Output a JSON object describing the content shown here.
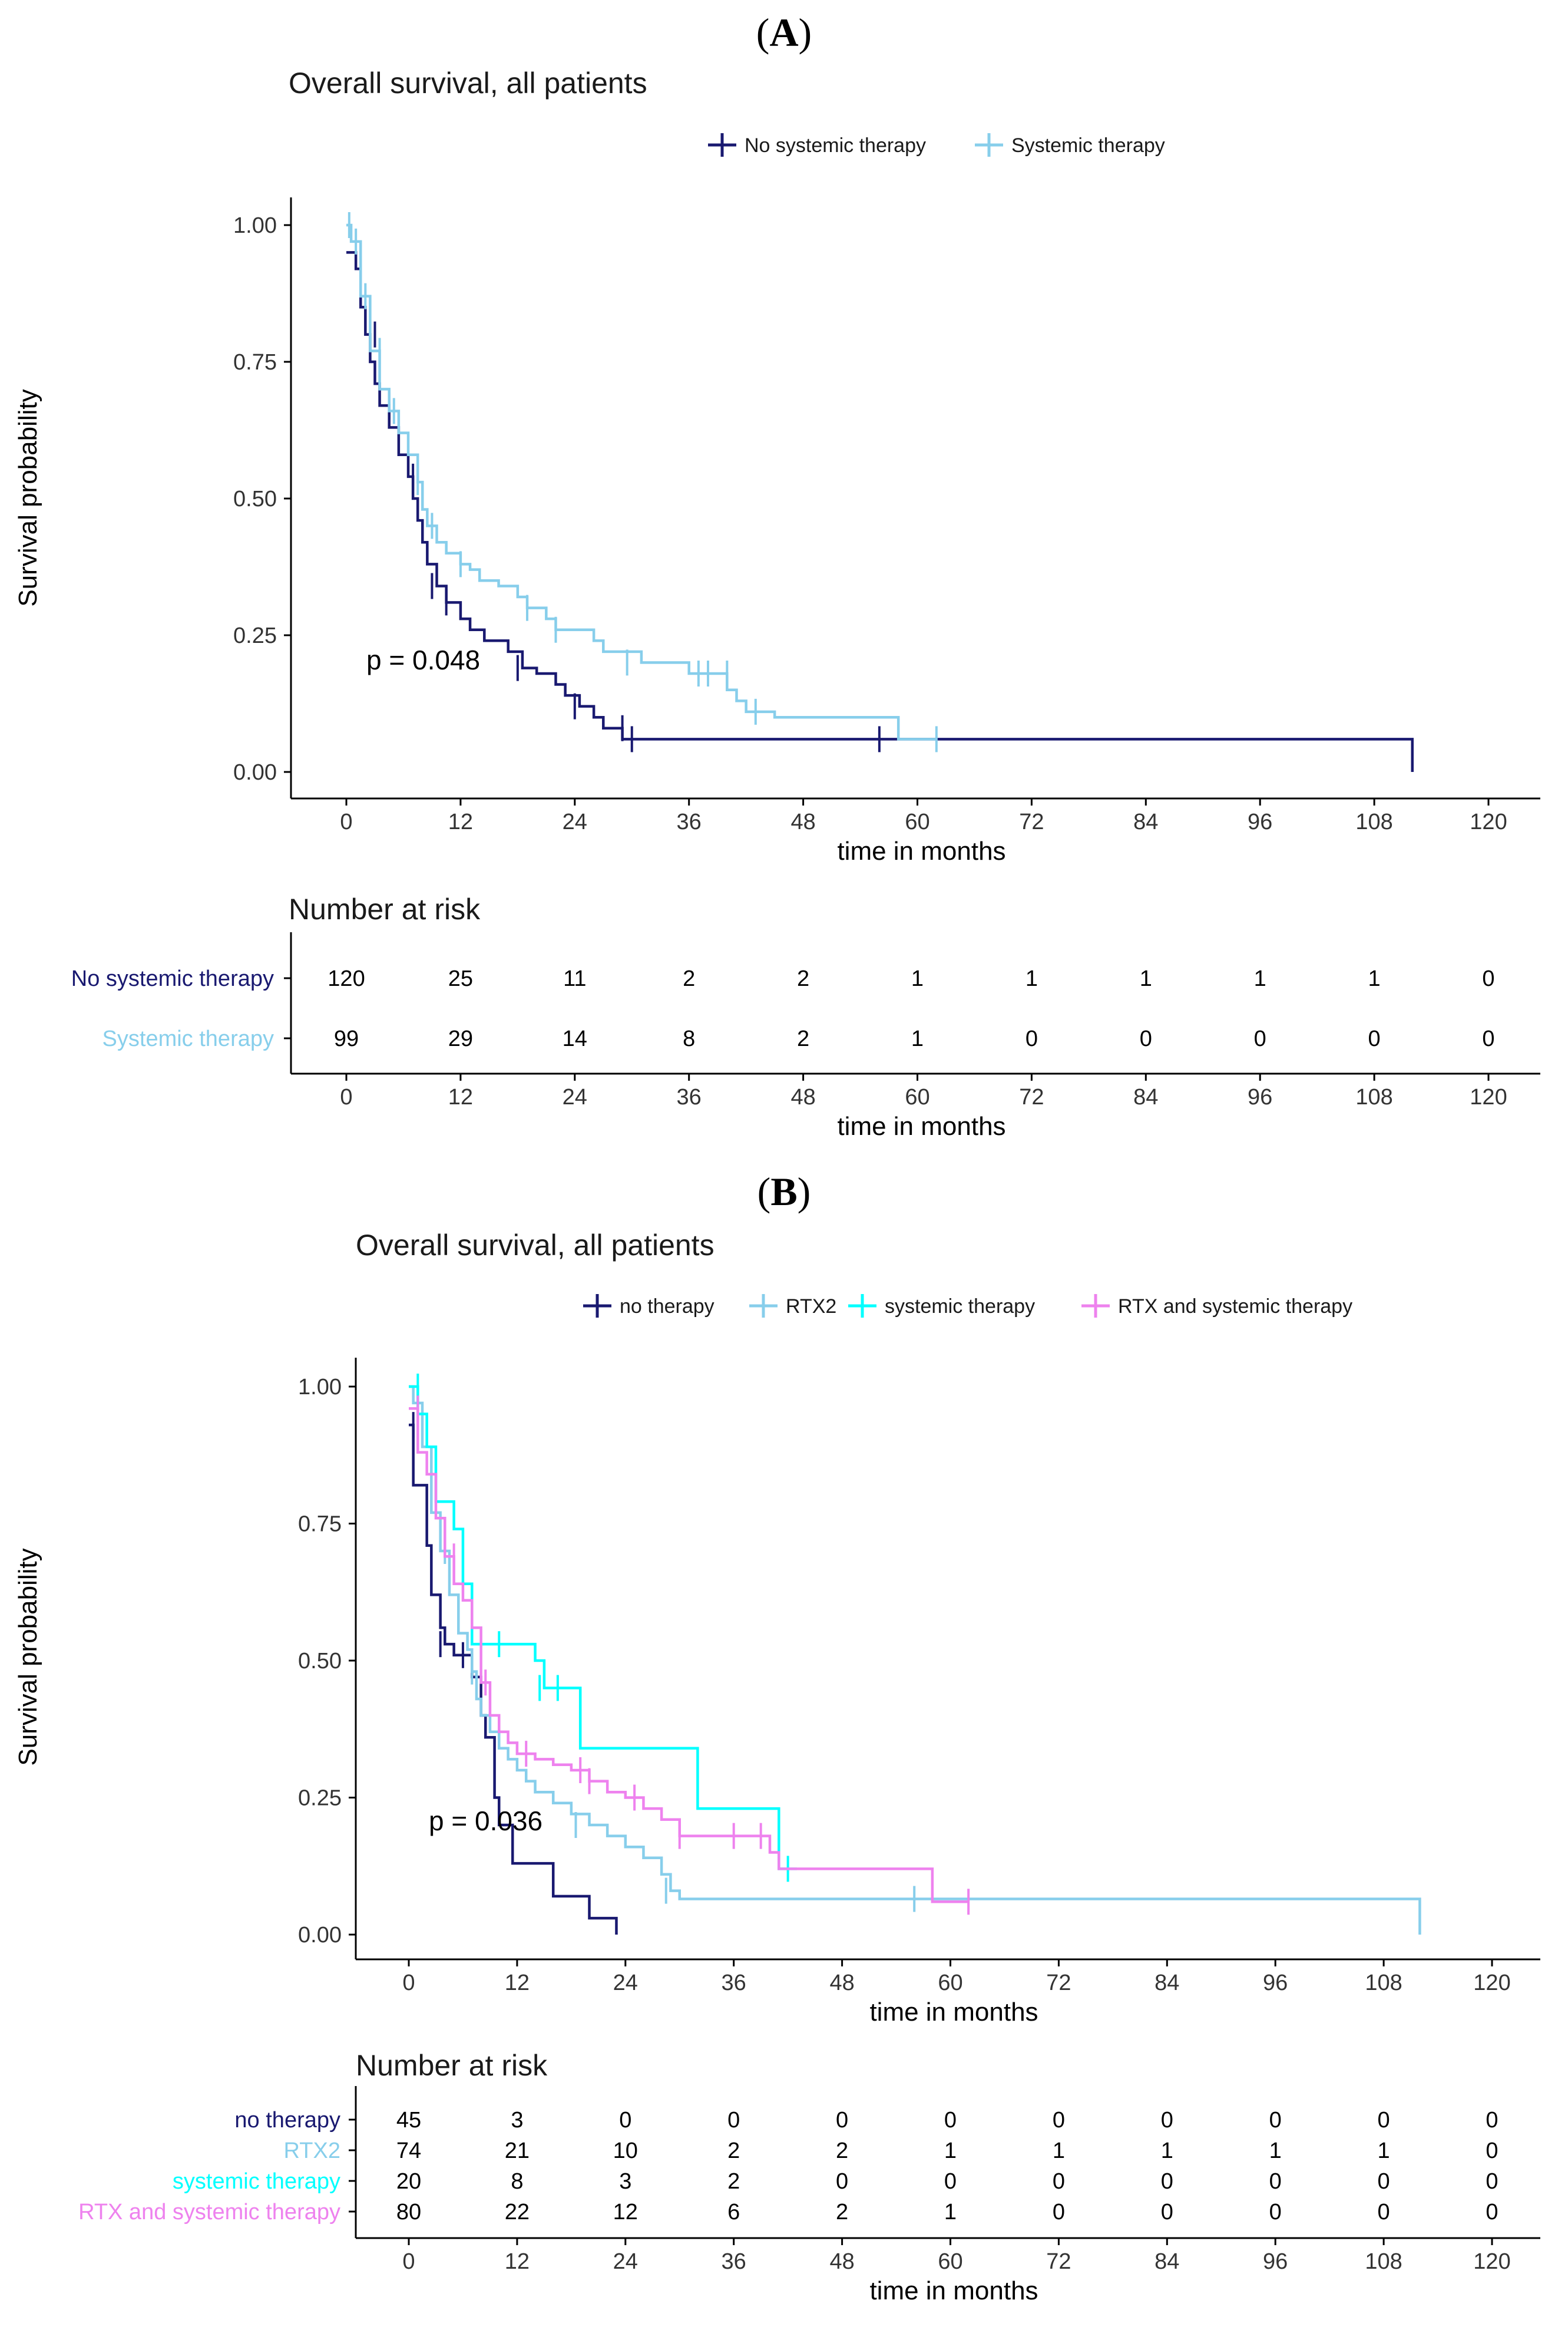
{
  "panels": {
    "A": {
      "label": "A",
      "title": "Overall survival, all patients",
      "p_value": "p = 0.048",
      "risk_title": "Number at risk",
      "risk_groups": [
        "No systemic therapy",
        "Systemic therapy"
      ]
    },
    "B": {
      "label": "B",
      "title": "Overall survival, all patients",
      "p_value": "p = 0.036",
      "risk_title": "Number at risk",
      "risk_groups": [
        "no therapy",
        "RTX2",
        "systemic therapy",
        "RTX and systemic therapy"
      ]
    }
  },
  "chart_data": [
    {
      "type": "line",
      "subtype": "kaplan-meier",
      "panel": "A",
      "title": "Overall survival, all patients",
      "xlabel": "time in months",
      "ylabel": "Survival probability",
      "xlim": [
        0,
        120
      ],
      "ylim": [
        0,
        1
      ],
      "xticks": [
        0,
        12,
        24,
        36,
        48,
        60,
        72,
        84,
        96,
        108,
        120
      ],
      "yticks": [
        "0.00",
        "0.25",
        "0.50",
        "0.75",
        "1.00"
      ],
      "legend_position": "top",
      "p_value": "p = 0.048",
      "series": [
        {
          "name": "No systemic therapy",
          "color": "#191970",
          "steps": [
            [
              0,
              0.95
            ],
            [
              1,
              0.92
            ],
            [
              1.5,
              0.85
            ],
            [
              2,
              0.8
            ],
            [
              2.5,
              0.75
            ],
            [
              3,
              0.71
            ],
            [
              3.5,
              0.67
            ],
            [
              4.5,
              0.63
            ],
            [
              5.5,
              0.58
            ],
            [
              6.5,
              0.54
            ],
            [
              7,
              0.5
            ],
            [
              7.5,
              0.46
            ],
            [
              8,
              0.42
            ],
            [
              8.5,
              0.38
            ],
            [
              9.5,
              0.34
            ],
            [
              10.5,
              0.31
            ],
            [
              12,
              0.28
            ],
            [
              13,
              0.26
            ],
            [
              14.5,
              0.24
            ],
            [
              17,
              0.22
            ],
            [
              18.5,
              0.19
            ],
            [
              20,
              0.18
            ],
            [
              22,
              0.16
            ],
            [
              23,
              0.14
            ],
            [
              24.5,
              0.12
            ],
            [
              26,
              0.1
            ],
            [
              27,
              0.08
            ],
            [
              29,
              0.06
            ],
            [
              112,
              0.06
            ],
            [
              112,
              0.0
            ]
          ],
          "censor": [
            [
              1.5,
              0.92
            ],
            [
              3,
              0.8
            ],
            [
              4.5,
              0.67
            ],
            [
              7,
              0.54
            ],
            [
              9,
              0.34
            ],
            [
              10.5,
              0.31
            ],
            [
              18,
              0.19
            ],
            [
              24,
              0.12
            ],
            [
              29,
              0.08
            ],
            [
              30,
              0.06
            ],
            [
              56,
              0.06
            ]
          ]
        },
        {
          "name": "Systemic therapy",
          "color": "#87CEEB",
          "steps": [
            [
              0,
              1.0
            ],
            [
              0.5,
              0.97
            ],
            [
              1.5,
              0.87
            ],
            [
              2.5,
              0.77
            ],
            [
              3.5,
              0.7
            ],
            [
              4.5,
              0.66
            ],
            [
              5.5,
              0.62
            ],
            [
              6.5,
              0.58
            ],
            [
              7.5,
              0.53
            ],
            [
              8,
              0.48
            ],
            [
              8.5,
              0.45
            ],
            [
              9.5,
              0.42
            ],
            [
              10.5,
              0.4
            ],
            [
              12,
              0.38
            ],
            [
              13,
              0.37
            ],
            [
              14,
              0.35
            ],
            [
              16,
              0.34
            ],
            [
              18,
              0.32
            ],
            [
              19,
              0.3
            ],
            [
              21,
              0.28
            ],
            [
              22,
              0.26
            ],
            [
              26,
              0.24
            ],
            [
              27,
              0.22
            ],
            [
              31,
              0.2
            ],
            [
              36,
              0.18
            ],
            [
              40,
              0.15
            ],
            [
              41,
              0.13
            ],
            [
              42,
              0.11
            ],
            [
              45,
              0.1
            ],
            [
              58,
              0.1
            ],
            [
              58,
              0.06
            ],
            [
              62,
              0.06
            ]
          ],
          "censor": [
            [
              0.3,
              1.0
            ],
            [
              1,
              0.97
            ],
            [
              2,
              0.87
            ],
            [
              3.5,
              0.77
            ],
            [
              5,
              0.66
            ],
            [
              7.5,
              0.53
            ],
            [
              9,
              0.45
            ],
            [
              12,
              0.38
            ],
            [
              19,
              0.3
            ],
            [
              22,
              0.26
            ],
            [
              29.5,
              0.2
            ],
            [
              37,
              0.18
            ],
            [
              38,
              0.18
            ],
            [
              40,
              0.18
            ],
            [
              43,
              0.11
            ],
            [
              62,
              0.06
            ]
          ]
        }
      ],
      "risk_table": {
        "title": "Number at risk",
        "times": [
          0,
          12,
          24,
          36,
          48,
          60,
          72,
          84,
          96,
          108,
          120
        ],
        "xlabel": "time in months",
        "rows": [
          {
            "name": "No systemic therapy",
            "color": "#191970",
            "values": [
              120,
              25,
              11,
              2,
              2,
              1,
              1,
              1,
              1,
              1,
              0
            ]
          },
          {
            "name": "Systemic therapy",
            "color": "#87CEEB",
            "values": [
              99,
              29,
              14,
              8,
              2,
              1,
              0,
              0,
              0,
              0,
              0
            ]
          }
        ]
      }
    },
    {
      "type": "line",
      "subtype": "kaplan-meier",
      "panel": "B",
      "title": "Overall survival, all patients",
      "xlabel": "time in months",
      "ylabel": "Survival probability",
      "xlim": [
        0,
        120
      ],
      "ylim": [
        0,
        1
      ],
      "xticks": [
        0,
        12,
        24,
        36,
        48,
        60,
        72,
        84,
        96,
        108,
        120
      ],
      "yticks": [
        "0.00",
        "0.25",
        "0.50",
        "0.75",
        "1.00"
      ],
      "legend_position": "top",
      "p_value": "p = 0.036",
      "series": [
        {
          "name": "no therapy",
          "color": "#191970",
          "steps": [
            [
              0,
              0.93
            ],
            [
              0.5,
              0.82
            ],
            [
              2,
              0.71
            ],
            [
              2.5,
              0.62
            ],
            [
              3.5,
              0.56
            ],
            [
              4,
              0.53
            ],
            [
              5,
              0.51
            ],
            [
              7,
              0.47
            ],
            [
              8,
              0.4
            ],
            [
              8.5,
              0.36
            ],
            [
              9.5,
              0.25
            ],
            [
              10,
              0.2
            ],
            [
              11.5,
              0.13
            ],
            [
              16,
              0.07
            ],
            [
              20,
              0.03
            ],
            [
              23,
              0.0
            ]
          ],
          "censor": [
            [
              0.5,
              0.93
            ],
            [
              3.5,
              0.53
            ],
            [
              6,
              0.51
            ]
          ]
        },
        {
          "name": "RTX2",
          "color": "#87CEEB",
          "steps": [
            [
              0,
              1.0
            ],
            [
              0.5,
              0.97
            ],
            [
              1.5,
              0.89
            ],
            [
              2.5,
              0.77
            ],
            [
              3.5,
              0.7
            ],
            [
              4.5,
              0.62
            ],
            [
              5.5,
              0.55
            ],
            [
              6.5,
              0.52
            ],
            [
              7,
              0.48
            ],
            [
              7.5,
              0.43
            ],
            [
              8,
              0.4
            ],
            [
              9,
              0.37
            ],
            [
              10,
              0.34
            ],
            [
              11,
              0.32
            ],
            [
              12,
              0.3
            ],
            [
              13,
              0.28
            ],
            [
              14,
              0.26
            ],
            [
              16,
              0.24
            ],
            [
              18,
              0.22
            ],
            [
              20,
              0.2
            ],
            [
              22,
              0.18
            ],
            [
              24,
              0.16
            ],
            [
              26,
              0.14
            ],
            [
              28,
              0.11
            ],
            [
              29,
              0.08
            ],
            [
              30,
              0.065
            ],
            [
              112,
              0.065
            ],
            [
              112,
              0.0
            ]
          ],
          "censor": [
            [
              1,
              0.97
            ],
            [
              4,
              0.7
            ],
            [
              7,
              0.48
            ],
            [
              18.5,
              0.2
            ],
            [
              28.5,
              0.08
            ],
            [
              56,
              0.065
            ]
          ]
        },
        {
          "name": "systemic therapy",
          "color": "#00FFFF",
          "steps": [
            [
              0,
              1.0
            ],
            [
              1,
              0.95
            ],
            [
              2,
              0.89
            ],
            [
              3,
              0.79
            ],
            [
              5,
              0.74
            ],
            [
              6,
              0.64
            ],
            [
              7,
              0.53
            ],
            [
              14,
              0.5
            ],
            [
              15,
              0.45
            ],
            [
              19,
              0.34
            ],
            [
              32,
              0.23
            ],
            [
              41,
              0.12
            ],
            [
              43,
              0.12
            ]
          ],
          "censor": [
            [
              1,
              1.0
            ],
            [
              10,
              0.53
            ],
            [
              14.5,
              0.45
            ],
            [
              16.5,
              0.45
            ],
            [
              42,
              0.12
            ]
          ]
        },
        {
          "name": "RTX and systemic therapy",
          "color": "#EE82EE",
          "steps": [
            [
              0,
              0.96
            ],
            [
              1,
              0.88
            ],
            [
              2,
              0.84
            ],
            [
              3,
              0.76
            ],
            [
              4,
              0.69
            ],
            [
              5,
              0.64
            ],
            [
              6,
              0.61
            ],
            [
              7,
              0.56
            ],
            [
              8,
              0.46
            ],
            [
              9,
              0.4
            ],
            [
              10,
              0.37
            ],
            [
              11,
              0.35
            ],
            [
              12,
              0.33
            ],
            [
              14,
              0.32
            ],
            [
              16,
              0.31
            ],
            [
              18,
              0.3
            ],
            [
              20,
              0.28
            ],
            [
              22,
              0.26
            ],
            [
              24,
              0.25
            ],
            [
              26,
              0.23
            ],
            [
              28,
              0.21
            ],
            [
              30,
              0.18
            ],
            [
              40,
              0.15
            ],
            [
              41,
              0.12
            ],
            [
              57,
              0.12
            ],
            [
              58,
              0.06
            ],
            [
              62,
              0.06
            ]
          ],
          "censor": [
            [
              1,
              0.96
            ],
            [
              5,
              0.69
            ],
            [
              8.5,
              0.46
            ],
            [
              13,
              0.33
            ],
            [
              19,
              0.3
            ],
            [
              20,
              0.28
            ],
            [
              25,
              0.25
            ],
            [
              30,
              0.18
            ],
            [
              36,
              0.18
            ],
            [
              39,
              0.18
            ],
            [
              62,
              0.06
            ]
          ]
        }
      ],
      "risk_table": {
        "title": "Number at risk",
        "times": [
          0,
          12,
          24,
          36,
          48,
          60,
          72,
          84,
          96,
          108,
          120
        ],
        "xlabel": "time in months",
        "rows": [
          {
            "name": "no therapy",
            "color": "#191970",
            "values": [
              45,
              3,
              0,
              0,
              0,
              0,
              0,
              0,
              0,
              0,
              0
            ]
          },
          {
            "name": "RTX2",
            "color": "#87CEEB",
            "values": [
              74,
              21,
              10,
              2,
              2,
              1,
              1,
              1,
              1,
              1,
              0
            ]
          },
          {
            "name": "systemic therapy",
            "color": "#00FFFF",
            "values": [
              20,
              8,
              3,
              2,
              0,
              0,
              0,
              0,
              0,
              0,
              0
            ]
          },
          {
            "name": "RTX and systemic therapy",
            "color": "#EE82EE",
            "values": [
              80,
              22,
              12,
              6,
              2,
              1,
              0,
              0,
              0,
              0,
              0
            ]
          }
        ]
      }
    }
  ]
}
